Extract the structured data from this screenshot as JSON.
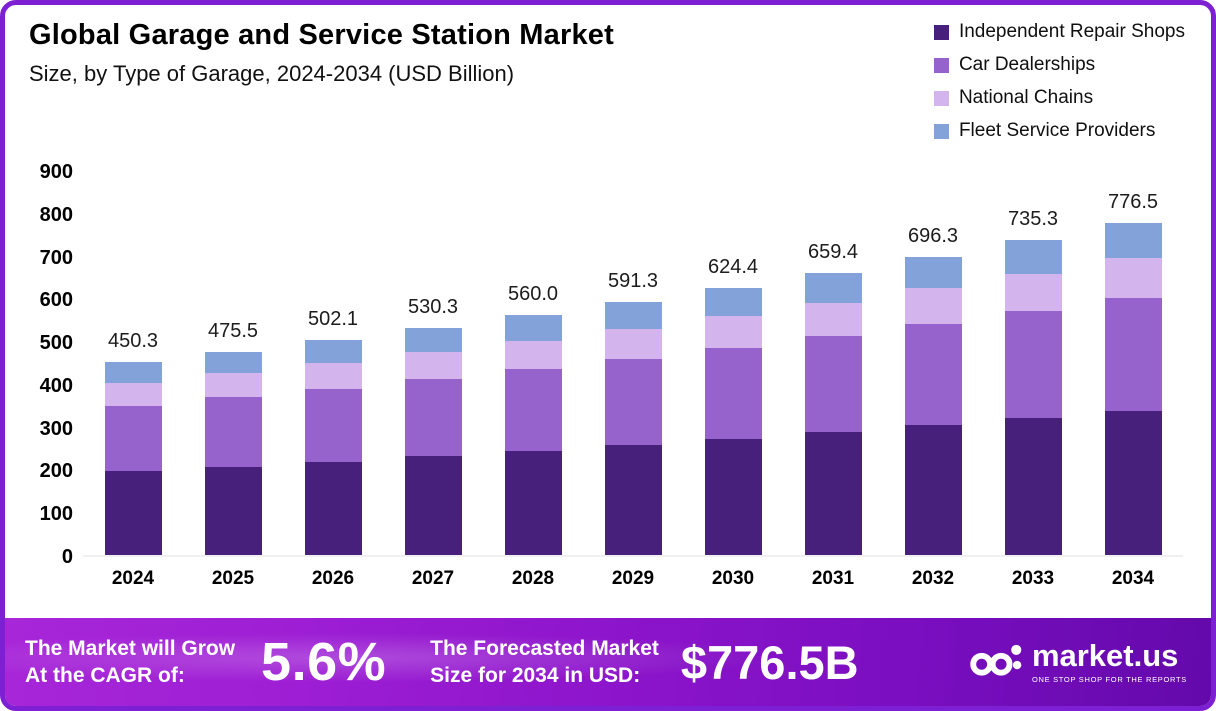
{
  "theme": {
    "border_color": "#7d1fd3",
    "banner_gradient": [
      "#a726d8",
      "#6309ab"
    ],
    "background": "#ffffff",
    "text_color": "#000000"
  },
  "header": {
    "title": "Global Garage and Service Station Market",
    "subtitle": "Size, by Type of Garage, 2024-2034 (USD Billion)"
  },
  "chart_data": {
    "type": "bar",
    "stacked": true,
    "categories": [
      "2024",
      "2025",
      "2026",
      "2027",
      "2028",
      "2029",
      "2030",
      "2031",
      "2032",
      "2033",
      "2034"
    ],
    "totals": [
      450.3,
      475.5,
      502.1,
      530.3,
      560.0,
      591.3,
      624.4,
      659.4,
      696.3,
      735.3,
      776.5
    ],
    "totals_display": [
      "450.3",
      "475.5",
      "502.1",
      "530.3",
      "560.0",
      "591.3",
      "624.4",
      "659.4",
      "696.3",
      "735.3",
      "776.5"
    ],
    "series": [
      {
        "name": "Independent Repair Shops",
        "color": "#46207a",
        "values": [
          195.9,
          206.8,
          218.4,
          230.7,
          243.6,
          257.2,
          271.6,
          286.8,
          302.9,
          319.9,
          337.8
        ]
      },
      {
        "name": "Car Dealerships",
        "color": "#9563cb",
        "values": [
          153.1,
          161.7,
          170.7,
          180.3,
          190.4,
          201.0,
          212.3,
          224.2,
          236.7,
          250.0,
          264.0
        ]
      },
      {
        "name": "National Chains",
        "color": "#d4b4ec",
        "values": [
          54.0,
          57.1,
          60.3,
          63.6,
          67.2,
          71.0,
          74.9,
          79.1,
          83.6,
          88.2,
          93.2
        ]
      },
      {
        "name": "Fleet Service Providers",
        "color": "#83a2da",
        "values": [
          47.3,
          49.9,
          52.7,
          55.7,
          58.8,
          62.1,
          65.6,
          69.3,
          73.1,
          77.2,
          81.5
        ]
      }
    ],
    "title": "Global Garage and Service Station Market Size, by Type of Garage, 2024-2034 (USD Billion)",
    "xlabel": "",
    "ylabel": "",
    "ylim": [
      0,
      900
    ],
    "yticks": [
      0,
      100,
      200,
      300,
      400,
      500,
      600,
      700,
      800,
      900
    ],
    "grid": false,
    "legend_position": "top-right"
  },
  "footer": {
    "cagr_line1": "The Market will Grow",
    "cagr_line2": "At the CAGR of:",
    "cagr_value": "5.6%",
    "forecast_line1": "The Forecasted Market",
    "forecast_line2": "Size for 2034 in USD:",
    "forecast_value": "$776.5B",
    "brand": "market.us",
    "brand_tagline": "ONE STOP SHOP FOR THE REPORTS"
  }
}
